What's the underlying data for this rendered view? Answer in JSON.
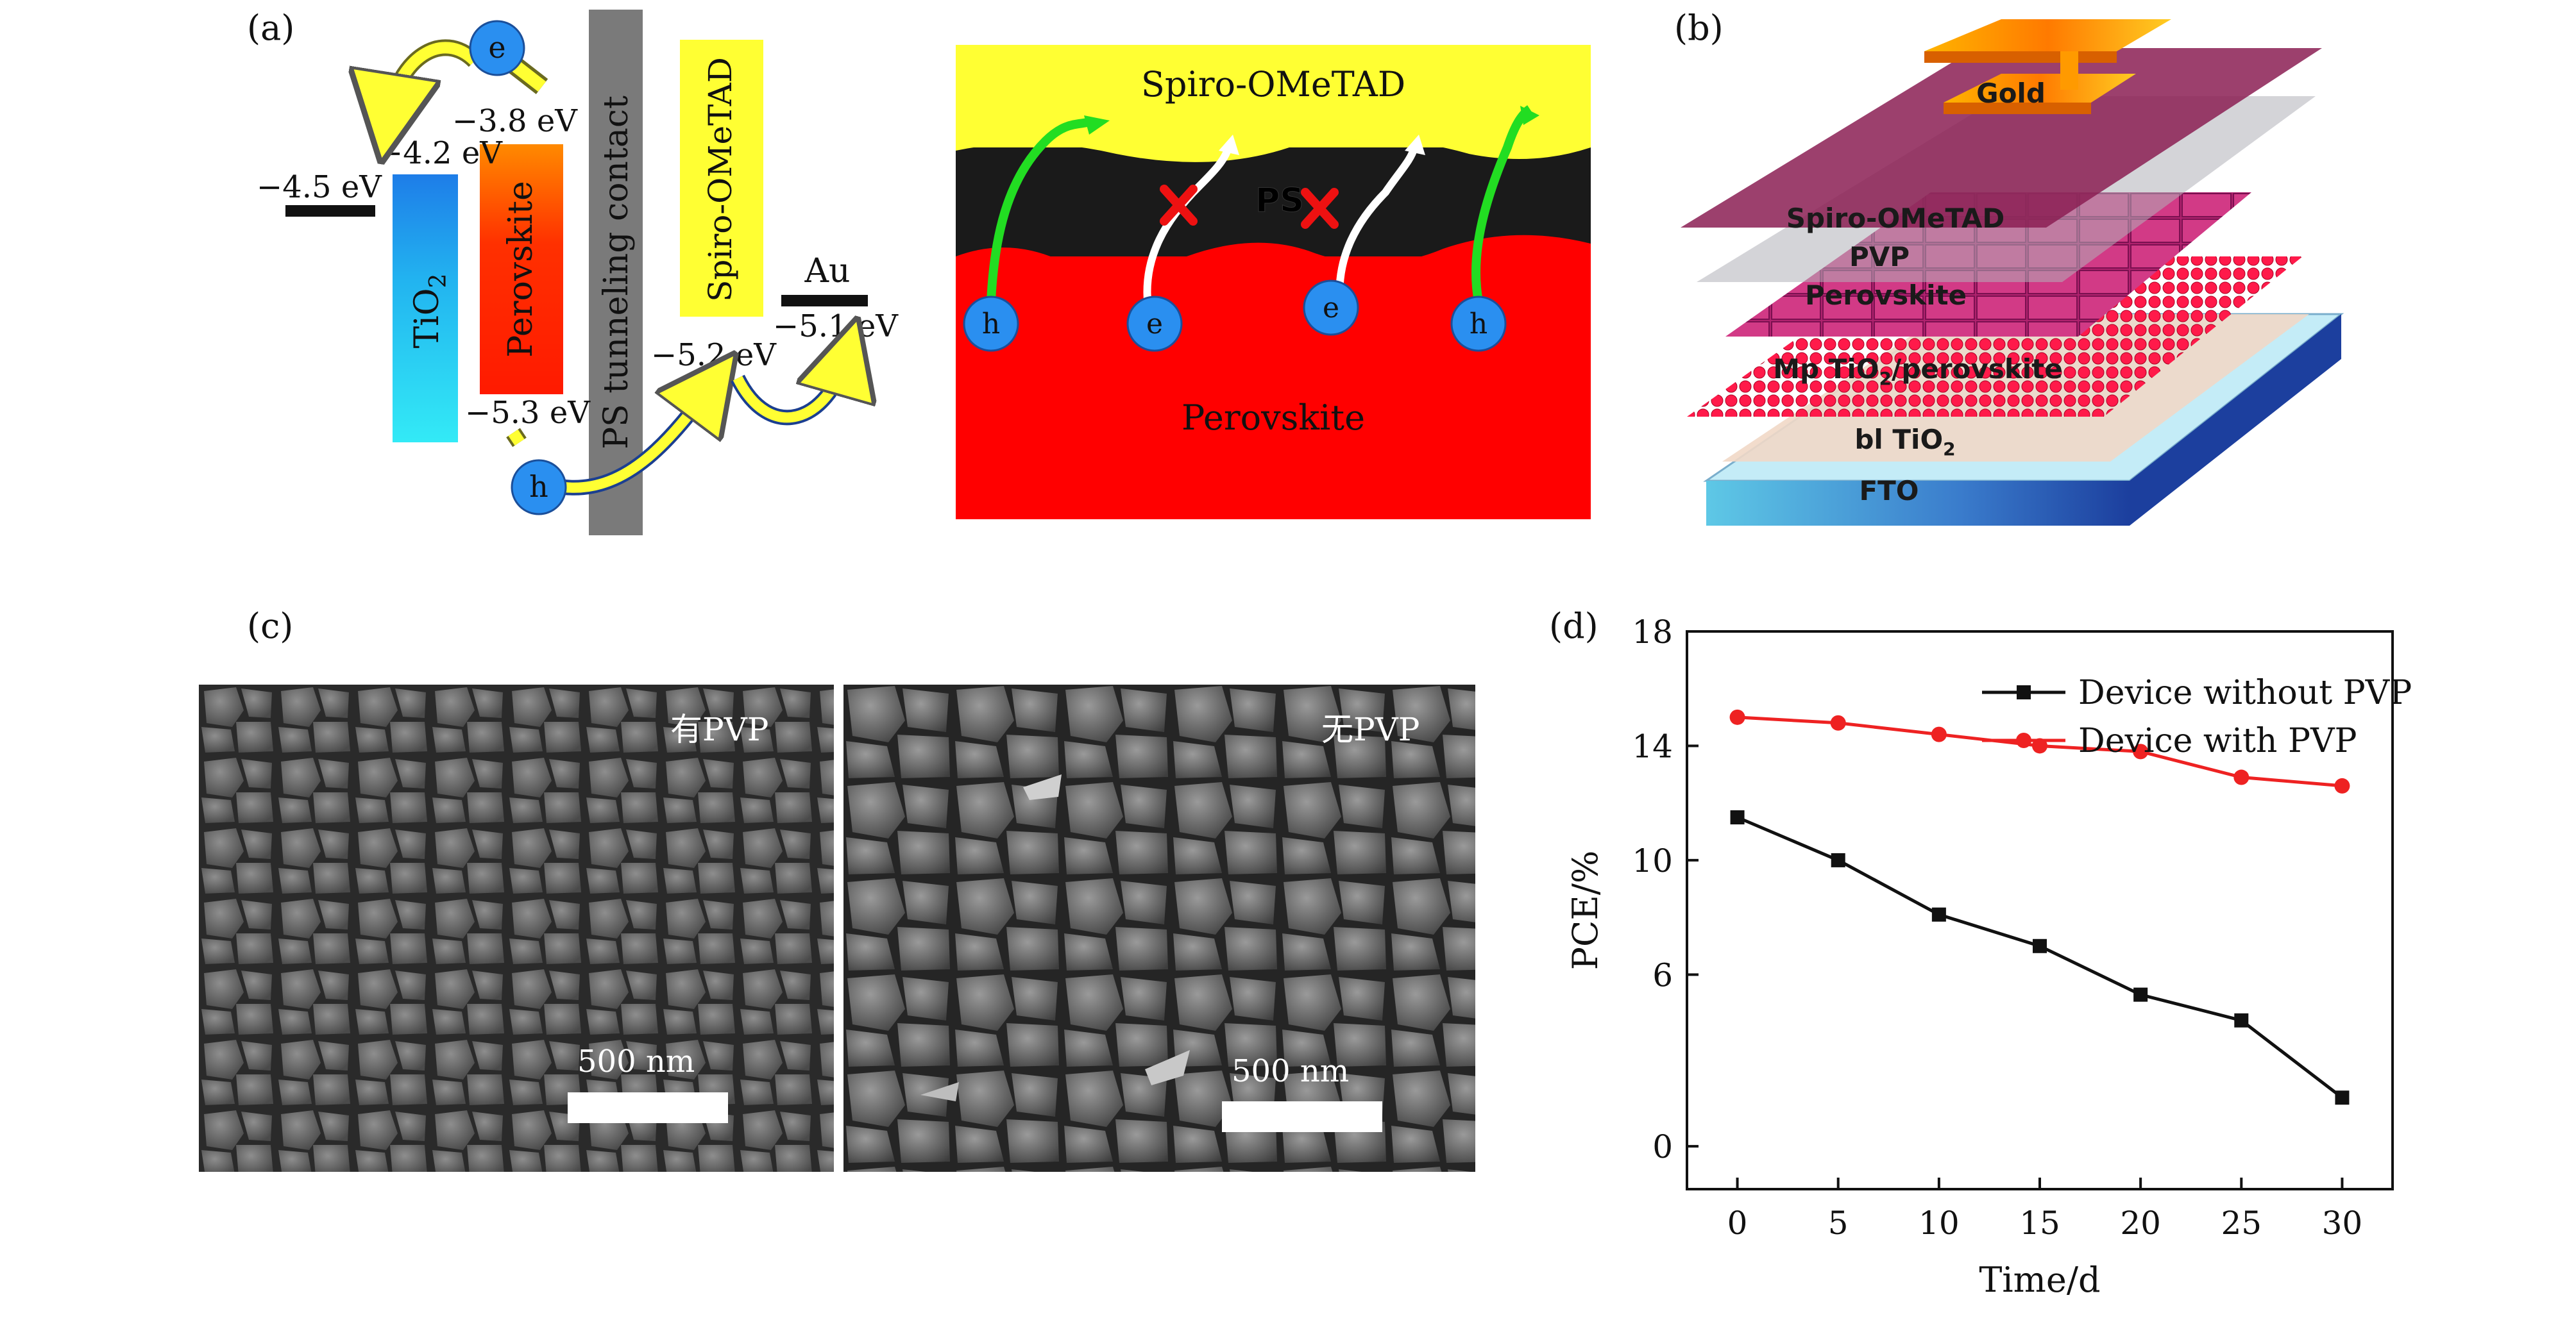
{
  "panels": {
    "a": {
      "label": "(a)",
      "layers": {
        "tio2": "TiO",
        "tio2_sub": "2",
        "perovskite": "Perovskite",
        "ps": "PS tunneling contact",
        "spiro": "Spiro-OMeTAD",
        "au": "Au"
      },
      "energy_levels": {
        "fto": "−4.5 eV",
        "tio2": "−4.2 eV",
        "perov_cb": "−3.8 eV",
        "perov_vb": "−5.3 eV",
        "spiro": "−5.2 eV",
        "au": "−5.1 eV"
      },
      "carriers": {
        "electron": "e",
        "hole": "h"
      },
      "interface": {
        "top": "Spiro-OMeTAD",
        "middle": "PS",
        "bottom": "Perovskite"
      },
      "colors": {
        "tio2": "#2fd0f0",
        "perovskite": "#ff1a00",
        "spiro": "#ffff33",
        "ps": "#7a7a7a",
        "carrier": "#2a8ff0"
      }
    },
    "b": {
      "label": "(b)",
      "layers": [
        "Gold",
        "Spiro-OMeTAD",
        "PVP",
        "Perovskite",
        "Mp TiO",
        "/perovskite",
        "bl TiO",
        "FTO"
      ],
      "sub": "2"
    },
    "c": {
      "label": "(c)",
      "left": {
        "caption": "有PVP",
        "scale": "500 nm"
      },
      "right": {
        "caption": "无PVP",
        "scale": "500 nm"
      }
    },
    "d": {
      "label": "(d)"
    }
  },
  "chart_data": {
    "type": "line",
    "title": "",
    "xlabel": "Time/d",
    "ylabel": "PCE/%",
    "x": [
      0,
      5,
      10,
      15,
      20,
      25,
      30
    ],
    "xlim": [
      -2.5,
      32.5
    ],
    "ylim": [
      -1.5,
      18
    ],
    "xticks": [
      0,
      5,
      10,
      15,
      20,
      25,
      30
    ],
    "yticks": [
      0,
      6,
      10,
      14,
      18
    ],
    "legend": "top-right",
    "series": [
      {
        "name": "Device without PVP",
        "color": "#111111",
        "marker": "square",
        "values": [
          11.5,
          10.0,
          8.1,
          7.0,
          5.3,
          4.4,
          1.7
        ]
      },
      {
        "name": "Device with PVP",
        "color": "#ee2222",
        "marker": "circle",
        "values": [
          15.0,
          14.8,
          14.4,
          14.0,
          13.8,
          12.9,
          12.6
        ]
      }
    ]
  }
}
